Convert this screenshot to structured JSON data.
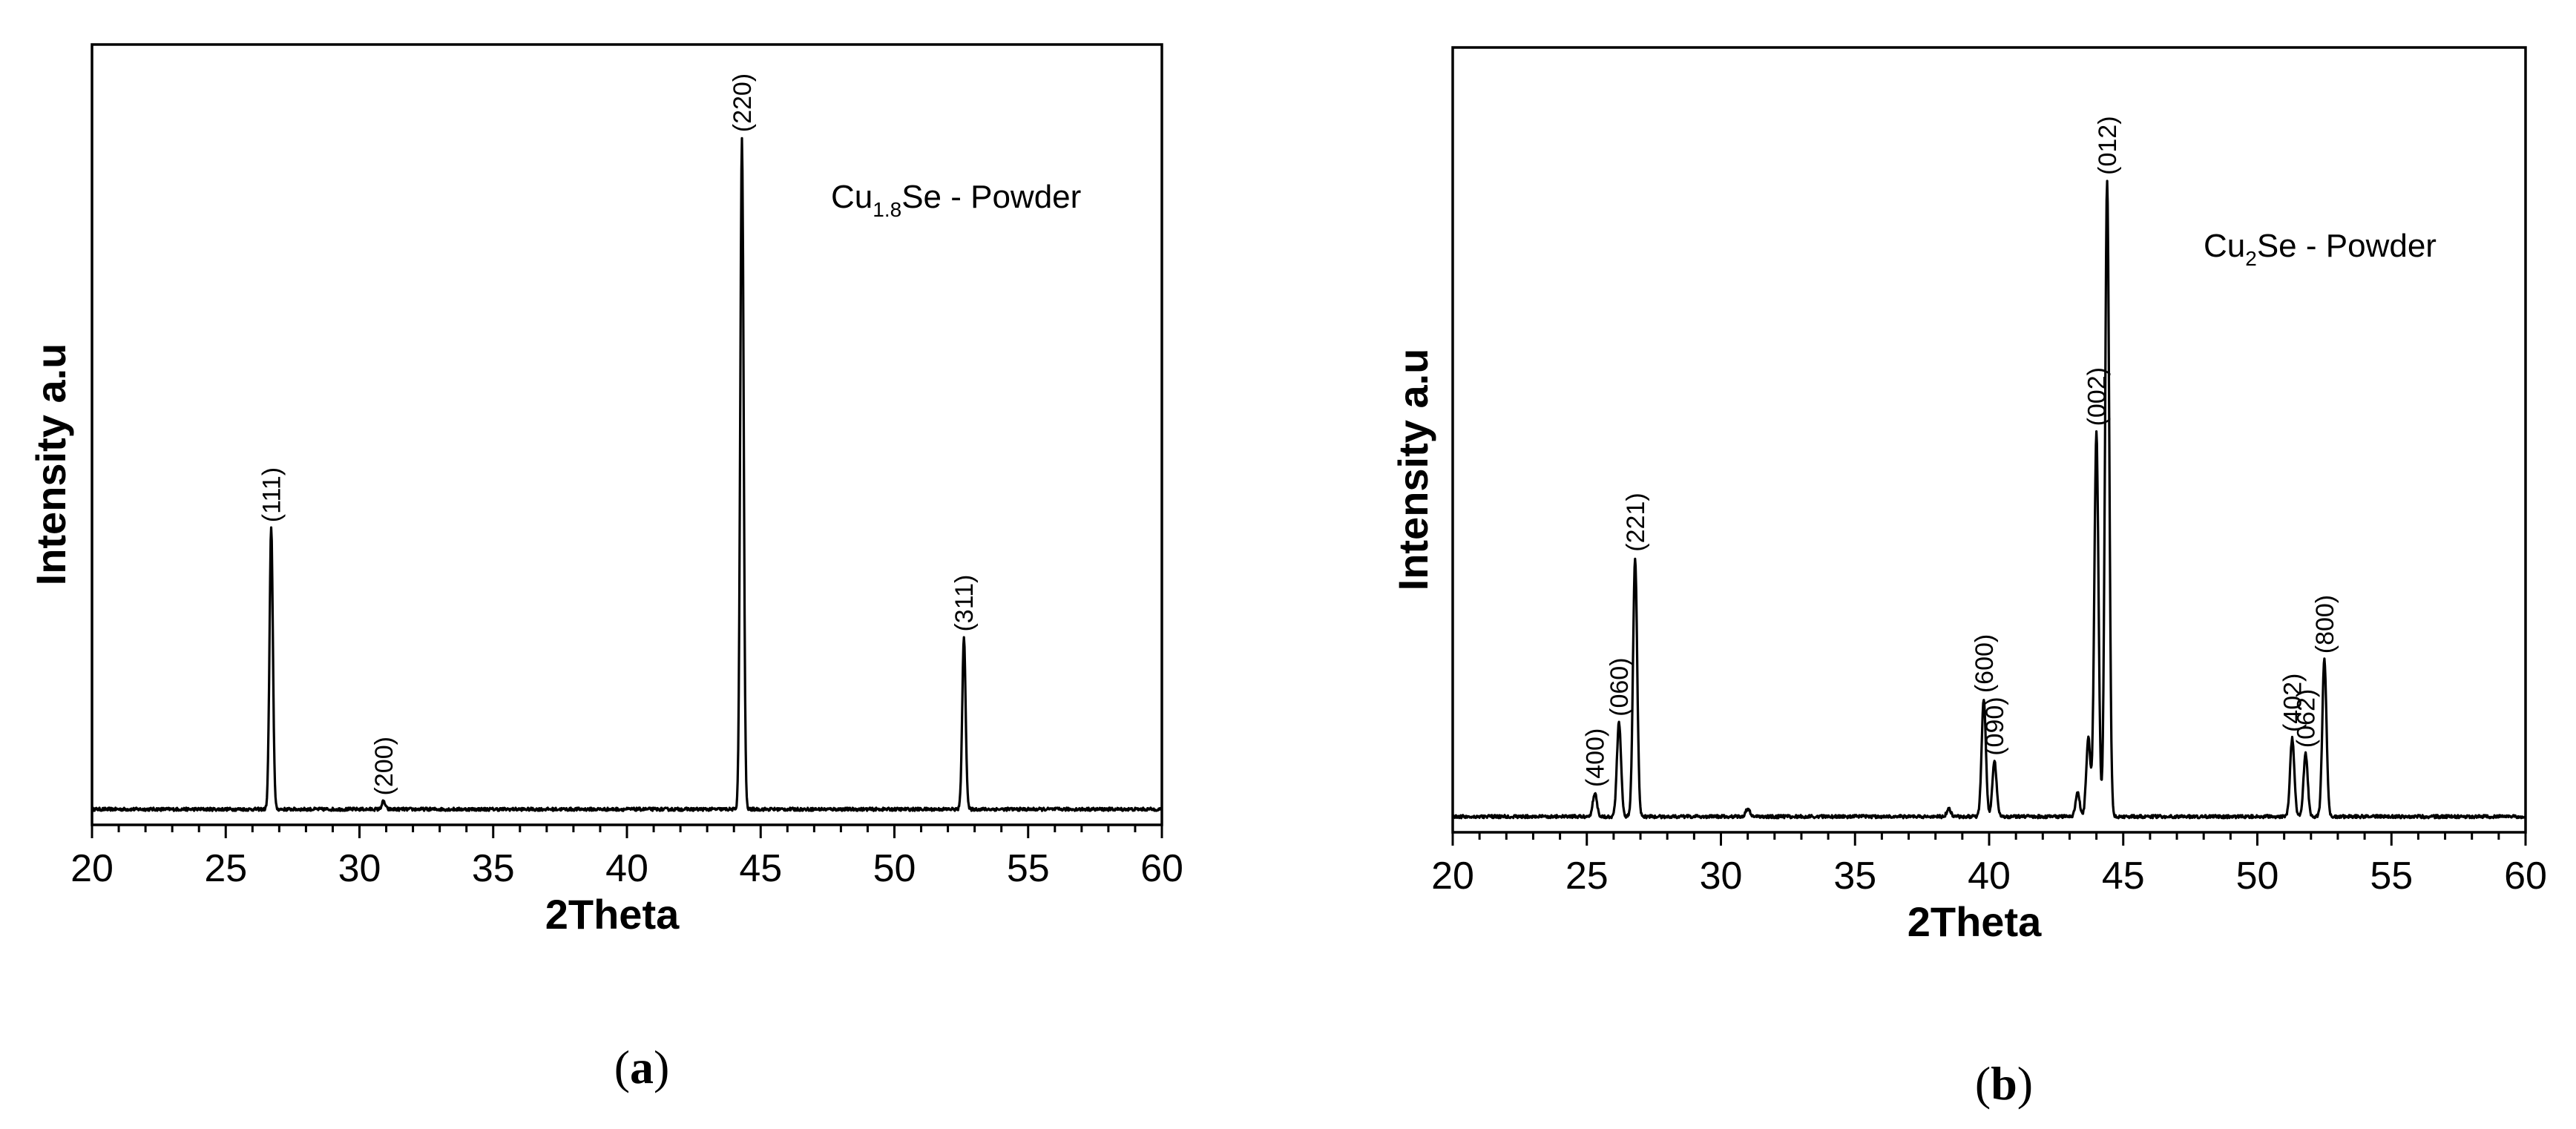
{
  "chart_data": [
    {
      "type": "line",
      "xlabel": "2Theta",
      "ylabel": "Intensity a.u",
      "xlim": [
        20,
        60
      ],
      "ylim": [
        0,
        1
      ],
      "xticks": [
        "20",
        "25",
        "30",
        "35",
        "40",
        "45",
        "50",
        "55",
        "60"
      ],
      "annotation": {
        "prefix": "Cu",
        "subscript": "1.8",
        "suffix": "Se - Powder"
      },
      "caption": {
        "open": "(",
        "letter": "a",
        "close": ")"
      },
      "baseline": 0.02,
      "peaks": [
        {
          "x": 26.7,
          "y": 0.38,
          "label": "(111)"
        },
        {
          "x": 30.9,
          "y": 0.03,
          "label": "(200)"
        },
        {
          "x": 44.3,
          "y": 0.88,
          "label": "(220)"
        },
        {
          "x": 52.6,
          "y": 0.24,
          "label": "(311)"
        }
      ]
    },
    {
      "type": "line",
      "xlabel": "2Theta",
      "ylabel": "Intensity a.u",
      "xlim": [
        20,
        60
      ],
      "ylim": [
        0,
        1
      ],
      "xticks": [
        "20",
        "25",
        "30",
        "35",
        "40",
        "45",
        "50",
        "55",
        "60"
      ],
      "annotation": {
        "prefix": "Cu",
        "subscript": "2",
        "suffix": "Se - Powder"
      },
      "caption": {
        "open": "(",
        "letter": "b",
        "close": ")"
      },
      "baseline": 0.02,
      "peaks": [
        {
          "x": 25.3,
          "y": 0.05,
          "label": "(400)"
        },
        {
          "x": 26.2,
          "y": 0.14,
          "label": "(060)"
        },
        {
          "x": 26.8,
          "y": 0.35,
          "label": "(221)"
        },
        {
          "x": 31.0,
          "y": 0.03,
          "label": ""
        },
        {
          "x": 38.5,
          "y": 0.03,
          "label": ""
        },
        {
          "x": 39.8,
          "y": 0.17,
          "label": "(600)"
        },
        {
          "x": 40.2,
          "y": 0.09,
          "label": "(090)"
        },
        {
          "x": 43.3,
          "y": 0.05,
          "label": ""
        },
        {
          "x": 43.7,
          "y": 0.12,
          "label": ""
        },
        {
          "x": 44.0,
          "y": 0.51,
          "label": "(002)"
        },
        {
          "x": 44.4,
          "y": 0.83,
          "label": "(012)"
        },
        {
          "x": 51.3,
          "y": 0.12,
          "label": "(402)"
        },
        {
          "x": 51.8,
          "y": 0.1,
          "label": "(062)"
        },
        {
          "x": 52.5,
          "y": 0.22,
          "label": "(800)"
        }
      ]
    }
  ]
}
